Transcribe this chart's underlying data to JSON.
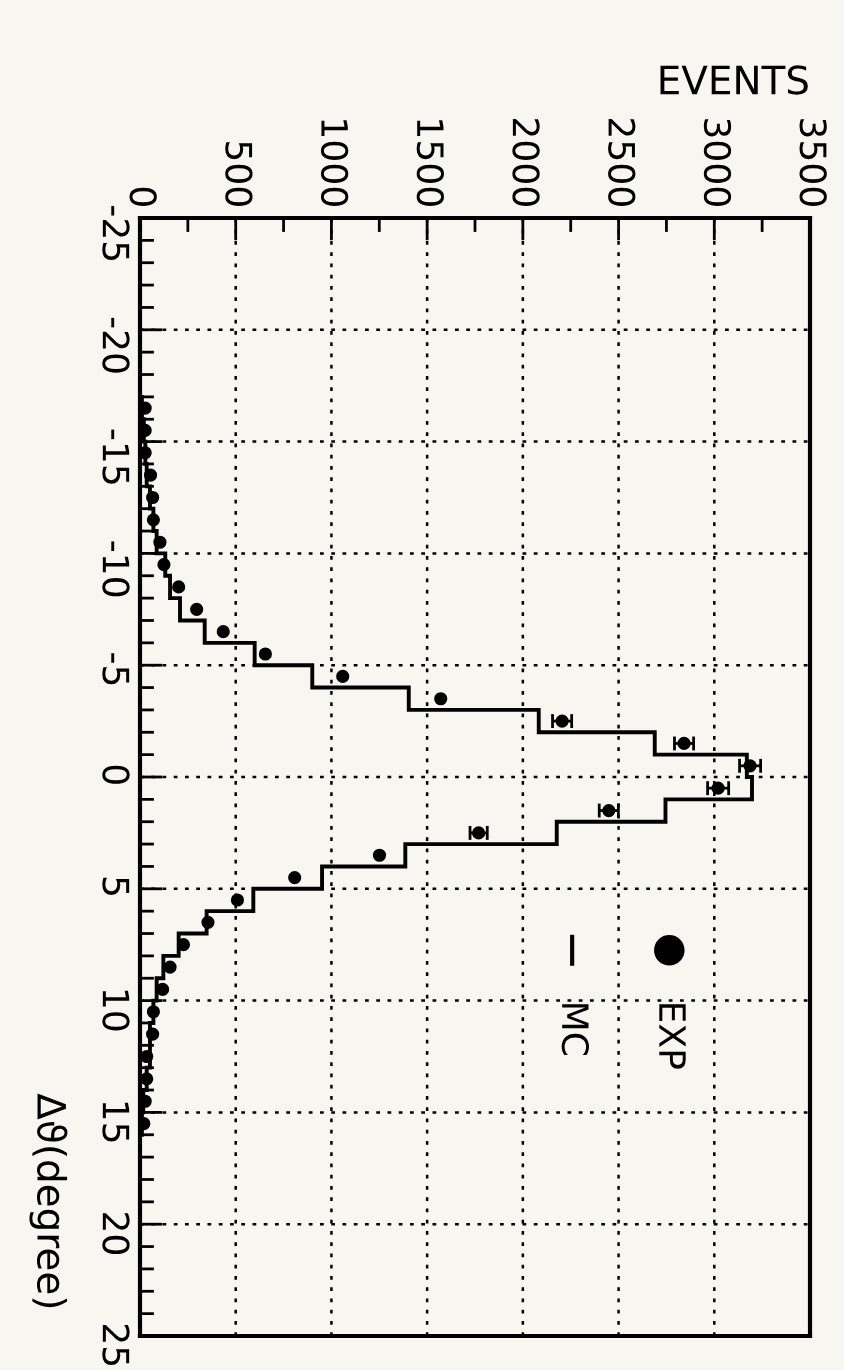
{
  "chart_data": {
    "type": "histogram",
    "orientation": "horizontal",
    "xlabel": "EVENTS",
    "ylabel": "Δϑ(degree)",
    "bins": [
      -25,
      -24,
      -23,
      -22,
      -21,
      -20,
      -19,
      -18,
      -17,
      -16,
      -15,
      -14,
      -13,
      -12,
      -11,
      -10,
      -9,
      -8,
      -7,
      -6,
      -5,
      -4,
      -3,
      -2,
      -1,
      0,
      1,
      2,
      3,
      4,
      5,
      6,
      7,
      8,
      9,
      10,
      11,
      12,
      13,
      14,
      15,
      16,
      17,
      18,
      19,
      20,
      21,
      22,
      23,
      24,
      25
    ],
    "series": [
      {
        "name": "MC",
        "color": "#000000",
        "values": [
          0,
          0,
          0,
          0,
          0,
          0,
          0,
          0,
          10,
          20,
          28,
          35,
          52,
          70,
          87,
          132,
          157,
          209,
          338,
          599,
          900,
          1404,
          2083,
          2689,
          3170,
          3197,
          2745,
          2177,
          1386,
          951,
          592,
          348,
          202,
          122,
          87,
          70,
          52,
          52,
          35,
          17,
          10,
          0,
          0,
          0,
          0,
          0,
          0,
          0,
          0,
          0
        ]
      },
      {
        "name": "EXP",
        "type": "scatter",
        "color": "#000000",
        "marker": "circle",
        "x": [
          -16.5,
          -15.5,
          -14.5,
          -13.5,
          -12.5,
          -11.5,
          -10.5,
          -9.5,
          -8.5,
          -7.5,
          -6.5,
          -5.5,
          -4.5,
          -3.5,
          -2.5,
          -1.5,
          -0.5,
          0.5,
          1.5,
          2.5,
          3.5,
          4.5,
          5.5,
          6.5,
          7.5,
          8.5,
          9.5,
          10.5,
          11.5,
          12.5,
          13.5,
          14.5,
          15.5
        ],
        "values": [
          27,
          27,
          27,
          55,
          66,
          70,
          104,
          125,
          202,
          296,
          435,
          655,
          1059,
          1571,
          2205,
          2842,
          3187,
          3020,
          2449,
          1769,
          1251,
          808,
          509,
          355,
          227,
          157,
          118,
          70,
          66,
          35,
          35,
          27,
          20
        ],
        "errors": [
          null,
          null,
          null,
          null,
          null,
          null,
          null,
          null,
          null,
          null,
          null,
          null,
          null,
          null,
          50,
          50,
          55,
          55,
          50,
          45,
          null,
          null,
          null,
          null,
          null,
          null,
          null,
          null,
          null,
          null,
          null,
          null,
          null
        ]
      }
    ],
    "ylim": [
      25,
      -25
    ],
    "yticks": [
      -25,
      -20,
      -15,
      -10,
      -5,
      0,
      5,
      10,
      15,
      20,
      25
    ],
    "xlim": [
      0,
      3500
    ],
    "xticks": [
      0,
      500,
      1000,
      1500,
      2000,
      2500,
      3000,
      3500
    ],
    "grid": true,
    "legend": "right"
  }
}
